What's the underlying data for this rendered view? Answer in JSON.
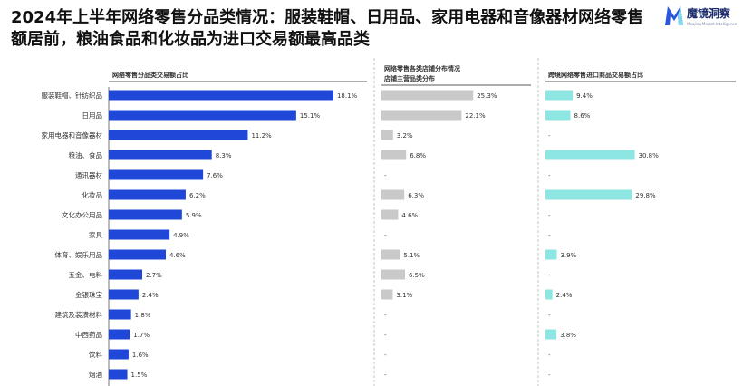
{
  "title": "2024年上半年网络零售分品类情况：服装鞋帽、日用品、家用电器和音像器材网络零售额居前，粮油食品和化妆品为进口交易额最高品类",
  "logo": {
    "name": "魔镜洞察",
    "tagline": "Moojing Market Intelligence"
  },
  "colors": {
    "panel1": "#1f47d8",
    "panel2": "#c9c9c9",
    "panel3": "#8ee6e2",
    "divider": "#b8b8b8"
  },
  "chart_data": [
    {
      "type": "bar",
      "orientation": "horizontal",
      "title": "网络零售分品类交易额占比",
      "categories": [
        "服装鞋帽、针纺织品",
        "日用品",
        "家用电器和音像器材",
        "粮油、食品",
        "通讯器材",
        "化妆品",
        "文化办公用品",
        "家具",
        "体育、娱乐用品",
        "五金、电料",
        "金银珠宝",
        "建筑及装潢材料",
        "中西药品",
        "饮料",
        "烟酒"
      ],
      "values": [
        18.1,
        15.1,
        11.2,
        8.3,
        7.6,
        6.2,
        5.9,
        4.9,
        4.6,
        2.7,
        2.4,
        1.8,
        1.7,
        1.6,
        1.5
      ],
      "labels": [
        "18.1%",
        "15.1%",
        "11.2%",
        "8.3%",
        "7.6%",
        "6.2%",
        "5.9%",
        "4.9%",
        "4.6%",
        "2.7%",
        "2.4%",
        "1.8%",
        "1.7%",
        "1.6%",
        "1.5%"
      ],
      "unit": "%"
    },
    {
      "type": "bar",
      "orientation": "horizontal",
      "title_lines": [
        "网络零售各类店铺分布情况",
        "店铺主营品类分布"
      ],
      "values": [
        25.3,
        22.1,
        3.2,
        6.8,
        null,
        6.3,
        4.6,
        null,
        5.1,
        6.5,
        3.1,
        null,
        null,
        null,
        null
      ],
      "labels": [
        "25.3%",
        "22.1%",
        "3.2%",
        "6.8%",
        "-",
        "6.3%",
        "4.6%",
        "-",
        "5.1%",
        "6.5%",
        "3.1%",
        "-",
        "-",
        "-",
        "-"
      ],
      "unit": "%"
    },
    {
      "type": "bar",
      "orientation": "horizontal",
      "title": "跨境网络零售进口商品交易额占比",
      "values": [
        9.4,
        8.6,
        null,
        30.8,
        null,
        29.8,
        null,
        null,
        3.9,
        null,
        2.4,
        null,
        3.8,
        null,
        null
      ],
      "labels": [
        "9.4%",
        "8.6%",
        "-",
        "30.8%",
        "-",
        "29.8%",
        "-",
        "-",
        "3.9%",
        "-",
        "2.4%",
        "-",
        "3.8%",
        "-",
        "-"
      ],
      "unit": "%"
    }
  ]
}
